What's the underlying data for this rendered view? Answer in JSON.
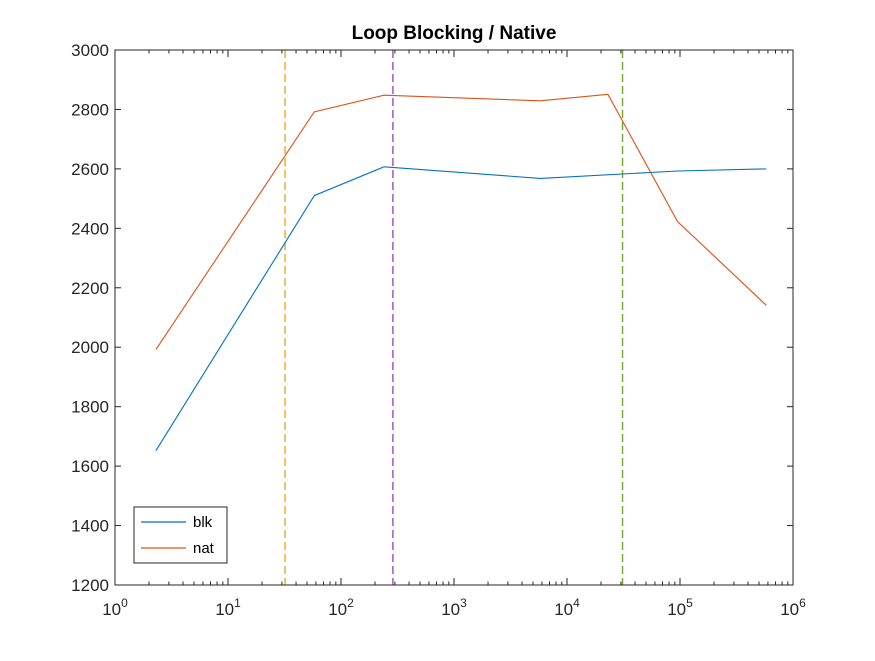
{
  "chart_data": {
    "type": "line",
    "title": "Loop Blocking / Native",
    "xlabel": "",
    "ylabel": "",
    "xscale": "log",
    "xlim": [
      1,
      1000000
    ],
    "ylim": [
      1200,
      3000
    ],
    "xticks": [
      1,
      10,
      100,
      1000,
      10000,
      100000,
      1000000
    ],
    "xtick_exponents": [
      "0",
      "1",
      "2",
      "3",
      "4",
      "5",
      "6"
    ],
    "yticks": [
      1200,
      1400,
      1600,
      1800,
      2000,
      2200,
      2400,
      2600,
      2800,
      3000
    ],
    "grid": false,
    "legend_position": "bottom-left",
    "series": [
      {
        "name": "blk",
        "color": "#0072BD",
        "x": [
          2.3,
          58,
          240,
          5800,
          95000,
          580000
        ],
        "y": [
          1652,
          2510,
          2607,
          2568,
          2593,
          2600
        ]
      },
      {
        "name": "nat",
        "color": "#D95319",
        "x": [
          2.3,
          58,
          240,
          5800,
          23000,
          95000,
          580000
        ],
        "y": [
          1992,
          2792,
          2848,
          2829,
          2851,
          2423,
          2141
        ]
      }
    ],
    "vlines": [
      {
        "x": 32,
        "color": "#EDB120",
        "style": "dashed"
      },
      {
        "x": 288,
        "color": "#A553C6",
        "style": "dashed"
      },
      {
        "x": 31000,
        "color": "#77AC30",
        "style": "dashed"
      }
    ]
  }
}
